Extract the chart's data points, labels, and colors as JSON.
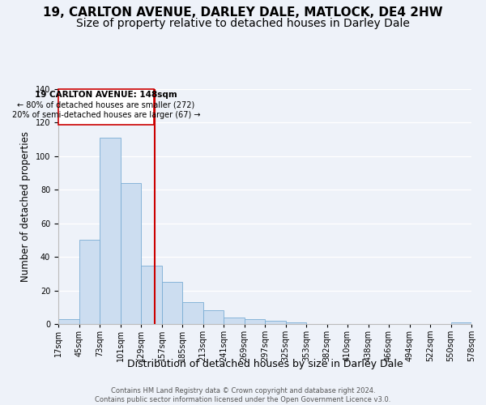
{
  "title": "19, CARLTON AVENUE, DARLEY DALE, MATLOCK, DE4 2HW",
  "subtitle": "Size of property relative to detached houses in Darley Dale",
  "xlabel": "Distribution of detached houses by size in Darley Dale",
  "ylabel": "Number of detached properties",
  "bar_values": [
    3,
    50,
    111,
    84,
    35,
    25,
    13,
    8,
    4,
    3,
    2,
    1,
    0,
    0,
    0,
    0,
    0,
    0,
    0,
    1
  ],
  "bin_labels": [
    "17sqm",
    "45sqm",
    "73sqm",
    "101sqm",
    "129sqm",
    "157sqm",
    "185sqm",
    "213sqm",
    "241sqm",
    "269sqm",
    "297sqm",
    "325sqm",
    "353sqm",
    "382sqm",
    "410sqm",
    "438sqm",
    "466sqm",
    "494sqm",
    "522sqm",
    "550sqm",
    "578sqm"
  ],
  "bar_color": "#ccddf0",
  "bar_edge_color": "#7aadd4",
  "annotation_box_color": "#ffffff",
  "annotation_box_edge": "#cc0000",
  "annotation_line_color": "#cc0000",
  "annotation_text_line1": "19 CARLTON AVENUE: 148sqm",
  "annotation_text_line2": "← 80% of detached houses are smaller (272)",
  "annotation_text_line3": "20% of semi-detached houses are larger (67) →",
  "property_line_x": 4.68,
  "ylim": [
    0,
    140
  ],
  "yticks": [
    0,
    20,
    40,
    60,
    80,
    100,
    120,
    140
  ],
  "footer_line1": "Contains HM Land Registry data © Crown copyright and database right 2024.",
  "footer_line2": "Contains public sector information licensed under the Open Government Licence v3.0.",
  "background_color": "#eef2f9",
  "title_fontsize": 11,
  "subtitle_fontsize": 10,
  "xlabel_fontsize": 9,
  "ylabel_fontsize": 8.5,
  "tick_fontsize": 7
}
